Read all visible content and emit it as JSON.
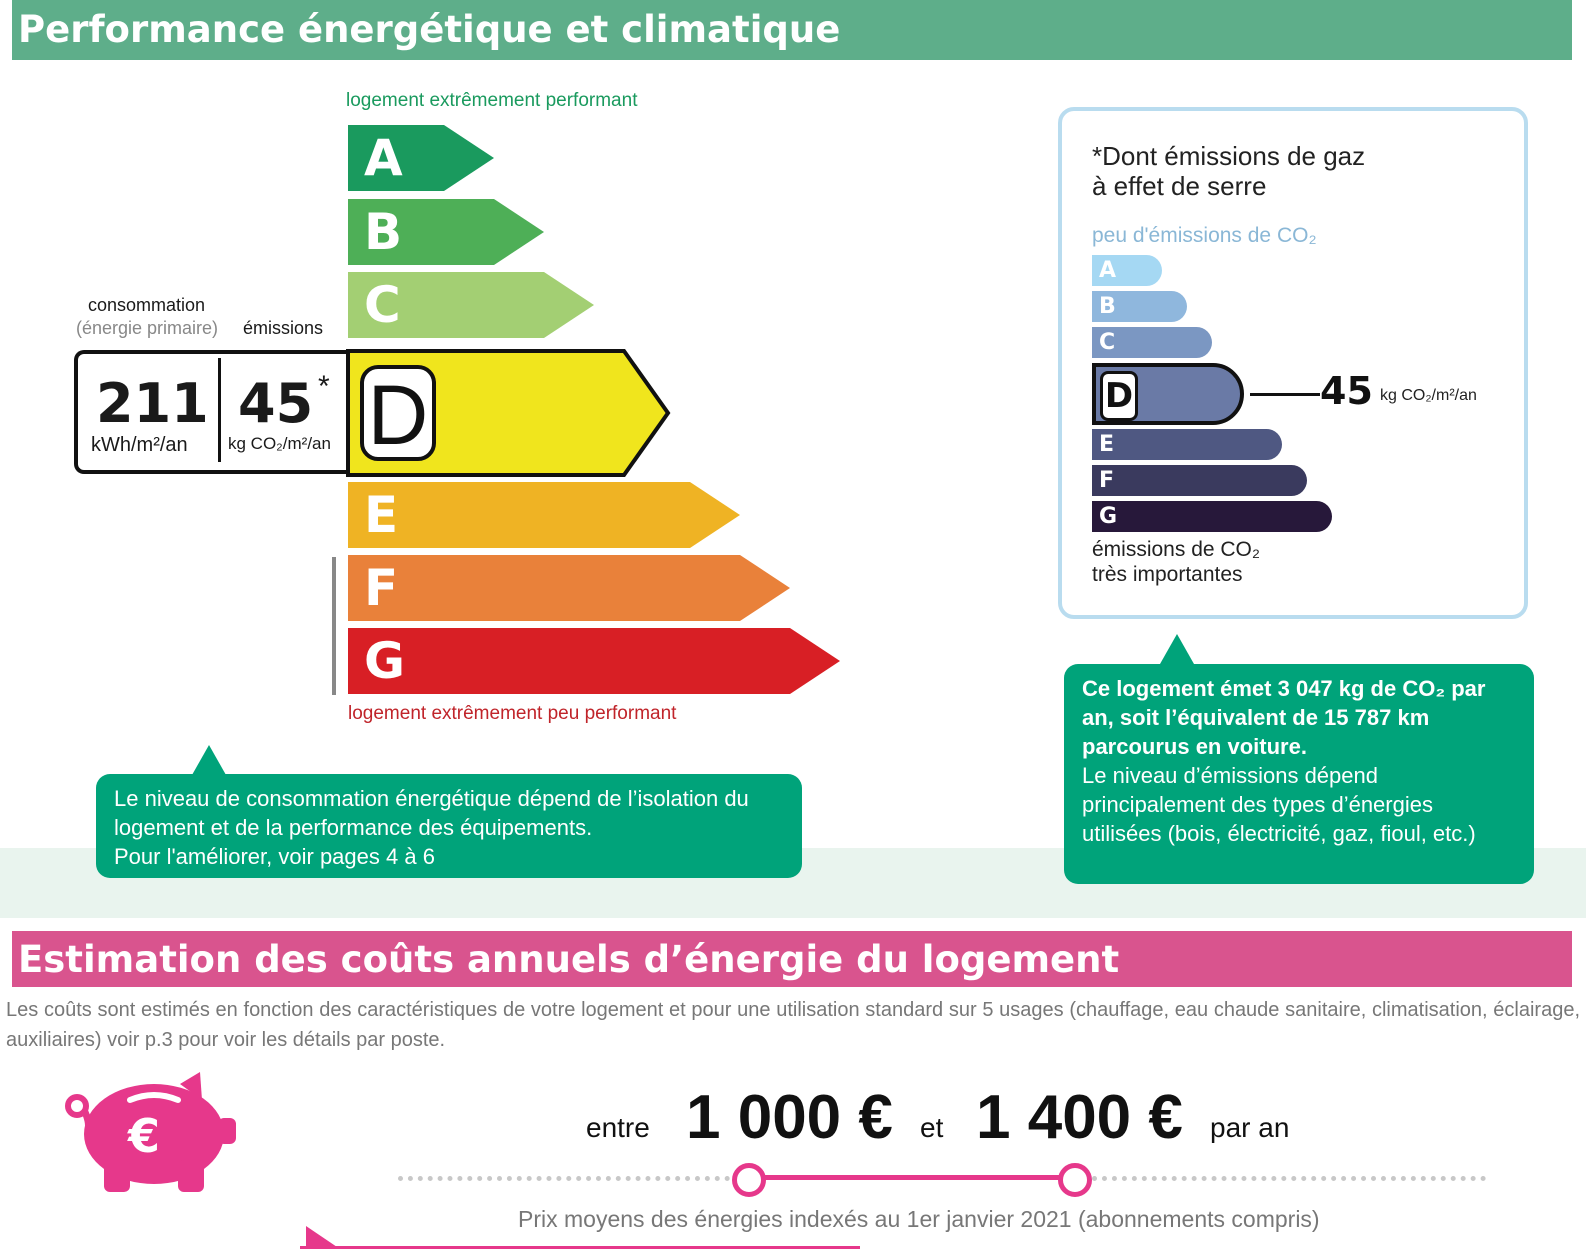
{
  "section1": {
    "title": "Performance énergétique et climatique"
  },
  "energy_scale": {
    "top_caption": "logement extrêmement performant",
    "bottom_caption": "logement extrêmement peu performant",
    "classes": [
      {
        "letter": "A",
        "color": "#1a9a5e"
      },
      {
        "letter": "B",
        "color": "#4eaf57"
      },
      {
        "letter": "C",
        "color": "#a3cf73"
      },
      {
        "letter": "D",
        "color": "#f0e51d"
      },
      {
        "letter": "E",
        "color": "#efb324"
      },
      {
        "letter": "F",
        "color": "#e9813a"
      },
      {
        "letter": "G",
        "color": "#d81f25"
      }
    ],
    "current_class": "D",
    "consumption_label": "consommation",
    "consumption_sublabel": "(énergie primaire)",
    "emissions_label": "émissions",
    "consumption_value": "211",
    "consumption_unit": "kWh/m²/an",
    "emissions_value": "45",
    "emissions_star": "*",
    "emissions_unit": "kg CO₂/m²/an"
  },
  "consumption_note": {
    "line1": "Le niveau de consommation énergétique dépend de l’isolation du",
    "line2": "logement et de la performance des équipements.",
    "line3": "Pour l'améliorer, voir pages 4 à 6"
  },
  "ghg_panel": {
    "title_line1": "*Dont émissions de gaz",
    "title_line2": "à effet de serre",
    "top_caption": "peu d'émissions de CO₂",
    "bottom_caption_line1": "émissions de CO₂",
    "bottom_caption_line2": "très importantes",
    "classes": [
      {
        "letter": "A",
        "color": "#a5d8f3"
      },
      {
        "letter": "B",
        "color": "#8fb7dd"
      },
      {
        "letter": "C",
        "color": "#7b97c2"
      },
      {
        "letter": "D",
        "color": "#6a7aa6"
      },
      {
        "letter": "E",
        "color": "#4f5882"
      },
      {
        "letter": "F",
        "color": "#3a3a5e"
      },
      {
        "letter": "G",
        "color": "#27183a"
      }
    ],
    "current_class": "D",
    "value": "45",
    "unit": "kg CO₂/m²/an"
  },
  "emissions_note": {
    "bold_line1": "Ce logement émet 3 047 kg de CO₂ par",
    "bold_line2": "an, soit l’équivalent de 15 787 km",
    "bold_line3": "parcourus en voiture.",
    "line4": "Le niveau d’émissions dépend",
    "line5": "principalement des types d’énergies",
    "line6": "utilisées (bois, électricité, gaz, fioul, etc.)"
  },
  "section2": {
    "title": "Estimation des coûts annuels d’énergie du logement",
    "intro": "Les coûts sont estimés en fonction des caractéristiques de votre logement et pour une utilisation standard sur 5 usages (chauffage, eau chaude sanitaire, climatisation, éclairage, auxiliaires) voir p.3 pour voir les détails par poste.",
    "word_between": "entre",
    "low_amount": "1 000 €",
    "word_and": "et",
    "high_amount": "1 400 €",
    "word_per": "par an",
    "prices_note": "Prix moyens des énergies indexés au  1er janvier 2021 (abonnements compris)",
    "accent_color": "#e6388b"
  }
}
